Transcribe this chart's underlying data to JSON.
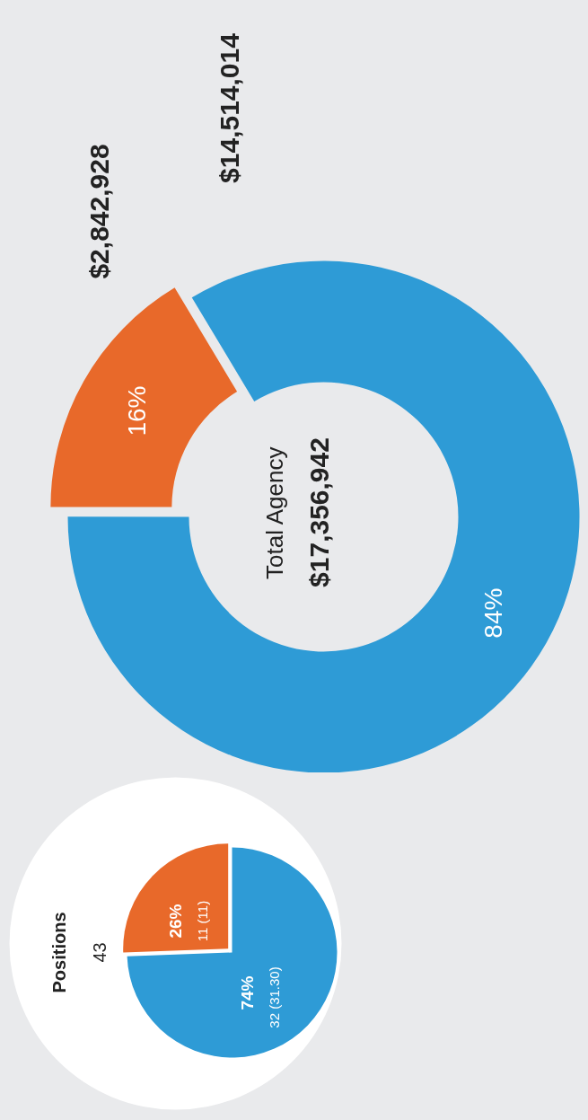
{
  "chart_data": [
    {
      "type": "donut",
      "title": "Total Agency",
      "subtitle": "$17,356,942",
      "categories": [
        null,
        null
      ],
      "values": [
        2842928,
        14514014
      ],
      "colors": [
        "#e8692a",
        "#2e9bd6"
      ],
      "value_labels": [
        "$2,842,928",
        "$14,514,014"
      ],
      "annotations": [
        "16%",
        "84%"
      ]
    },
    {
      "type": "pie",
      "title": "Positions",
      "subtitle": "43",
      "categories": [
        null,
        null
      ],
      "values": [
        11,
        32
      ],
      "colors": [
        "#e8692a",
        "#2e9bd6"
      ],
      "value_labels": [
        "11 (11)",
        "32 (31.30)"
      ],
      "annotations": [
        "26%",
        "74%"
      ]
    }
  ]
}
